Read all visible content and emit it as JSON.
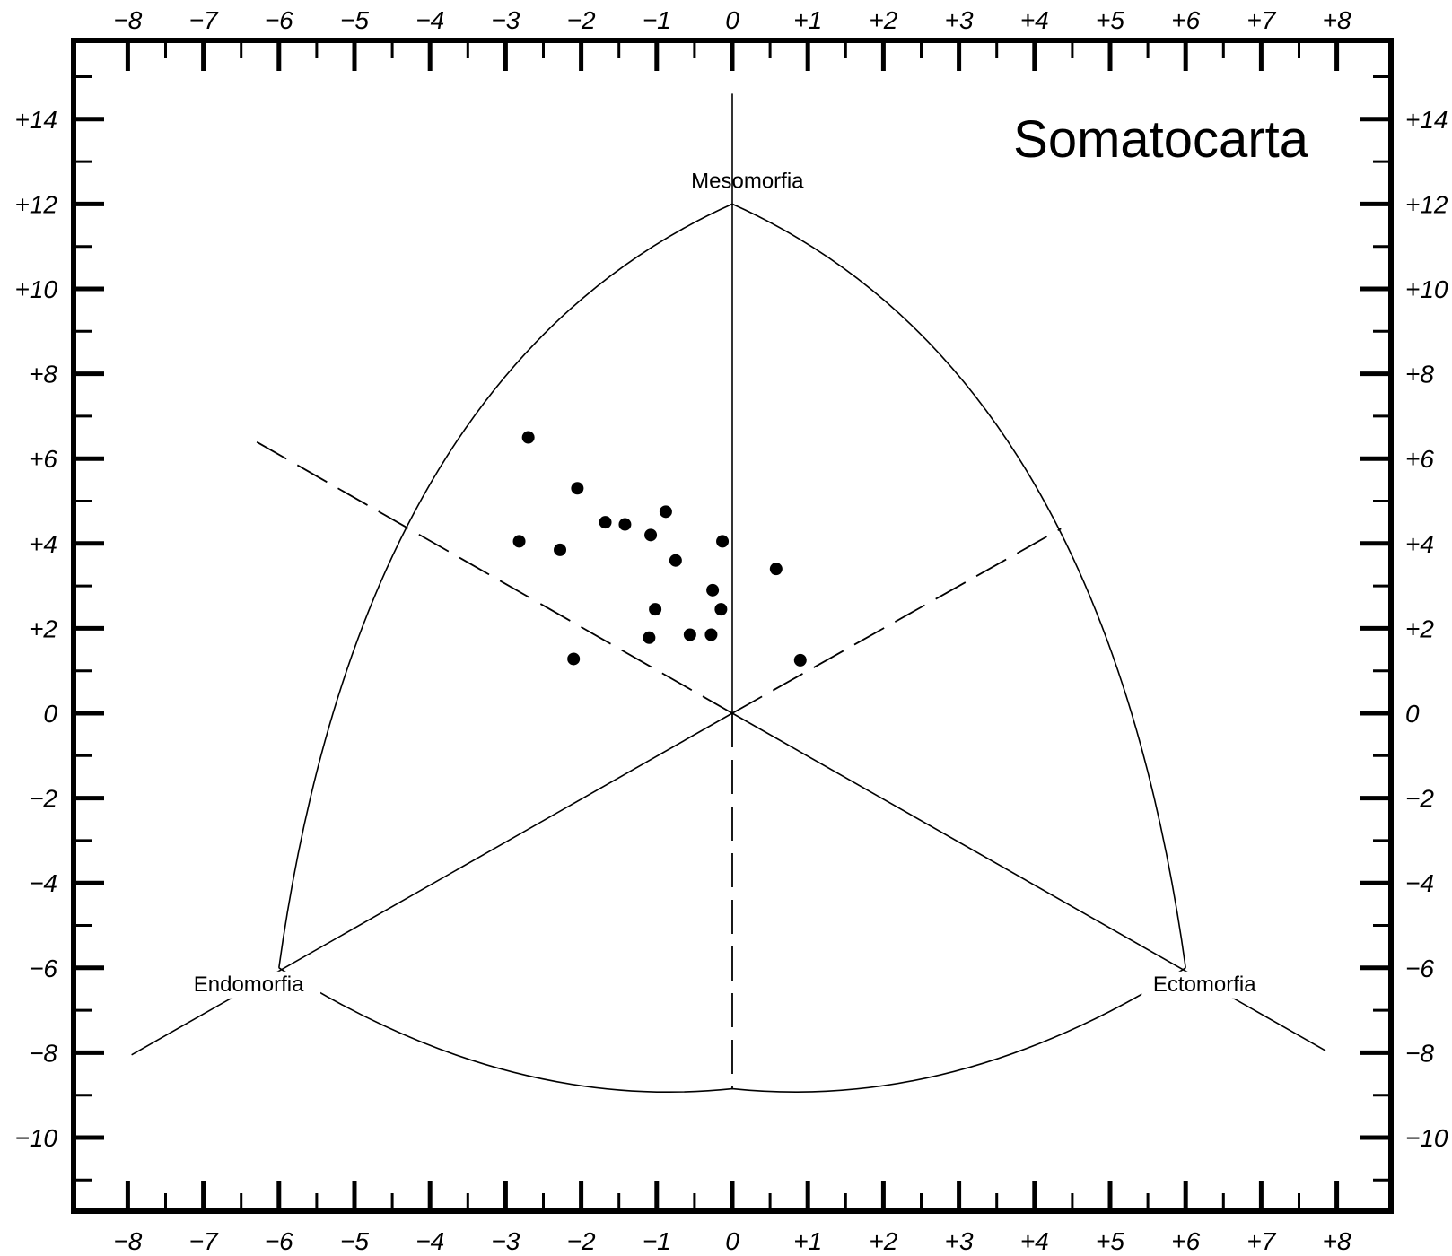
{
  "chart_data": {
    "type": "scatter",
    "title": "Somatocarta",
    "vertex_labels": {
      "mesomorphy": "Mesomorfia",
      "endomorphy": "Endomorfia",
      "ectomorphy": "Ectomorfia"
    },
    "xlim": [
      -8,
      8
    ],
    "ylim": [
      -10,
      14
    ],
    "x_ticks": [
      {
        "v": -8,
        "label": "−8"
      },
      {
        "v": -7,
        "label": "−7"
      },
      {
        "v": -6,
        "label": "−6"
      },
      {
        "v": -5,
        "label": "−5"
      },
      {
        "v": -4,
        "label": "−4"
      },
      {
        "v": -3,
        "label": "−3"
      },
      {
        "v": -2,
        "label": "−2"
      },
      {
        "v": -1,
        "label": "−1"
      },
      {
        "v": 0,
        "label": "0"
      },
      {
        "v": 1,
        "label": "+1"
      },
      {
        "v": 2,
        "label": "+2"
      },
      {
        "v": 3,
        "label": "+3"
      },
      {
        "v": 4,
        "label": "+4"
      },
      {
        "v": 5,
        "label": "+5"
      },
      {
        "v": 6,
        "label": "+6"
      },
      {
        "v": 7,
        "label": "+7"
      },
      {
        "v": 8,
        "label": "+8"
      }
    ],
    "y_ticks": [
      {
        "v": 14,
        "label": "+14"
      },
      {
        "v": 12,
        "label": "+12"
      },
      {
        "v": 10,
        "label": "+10"
      },
      {
        "v": 8,
        "label": "+8"
      },
      {
        "v": 6,
        "label": "+6"
      },
      {
        "v": 4,
        "label": "+4"
      },
      {
        "v": 2,
        "label": "+2"
      },
      {
        "v": 0,
        "label": "0"
      },
      {
        "v": -2,
        "label": "−2"
      },
      {
        "v": -4,
        "label": "−4"
      },
      {
        "v": -6,
        "label": "−6"
      },
      {
        "v": -8,
        "label": "−8"
      },
      {
        "v": -10,
        "label": "−10"
      }
    ],
    "series": [
      {
        "points": [
          {
            "x": -2.7,
            "y": 6.5
          },
          {
            "x": -2.05,
            "y": 5.3
          },
          {
            "x": -0.88,
            "y": 4.75
          },
          {
            "x": -1.68,
            "y": 4.5
          },
          {
            "x": -1.42,
            "y": 4.45
          },
          {
            "x": -1.08,
            "y": 4.2
          },
          {
            "x": -0.13,
            "y": 4.05
          },
          {
            "x": -2.82,
            "y": 4.05
          },
          {
            "x": -2.28,
            "y": 3.85
          },
          {
            "x": -0.75,
            "y": 3.6
          },
          {
            "x": 0.58,
            "y": 3.4
          },
          {
            "x": -0.26,
            "y": 2.9
          },
          {
            "x": -1.02,
            "y": 2.45
          },
          {
            "x": -0.15,
            "y": 2.45
          },
          {
            "x": -0.56,
            "y": 1.85
          },
          {
            "x": -0.28,
            "y": 1.85
          },
          {
            "x": -1.1,
            "y": 1.78
          },
          {
            "x": -2.1,
            "y": 1.28
          },
          {
            "x": 0.9,
            "y": 1.25
          }
        ]
      }
    ],
    "grid": false,
    "legend": "none"
  }
}
